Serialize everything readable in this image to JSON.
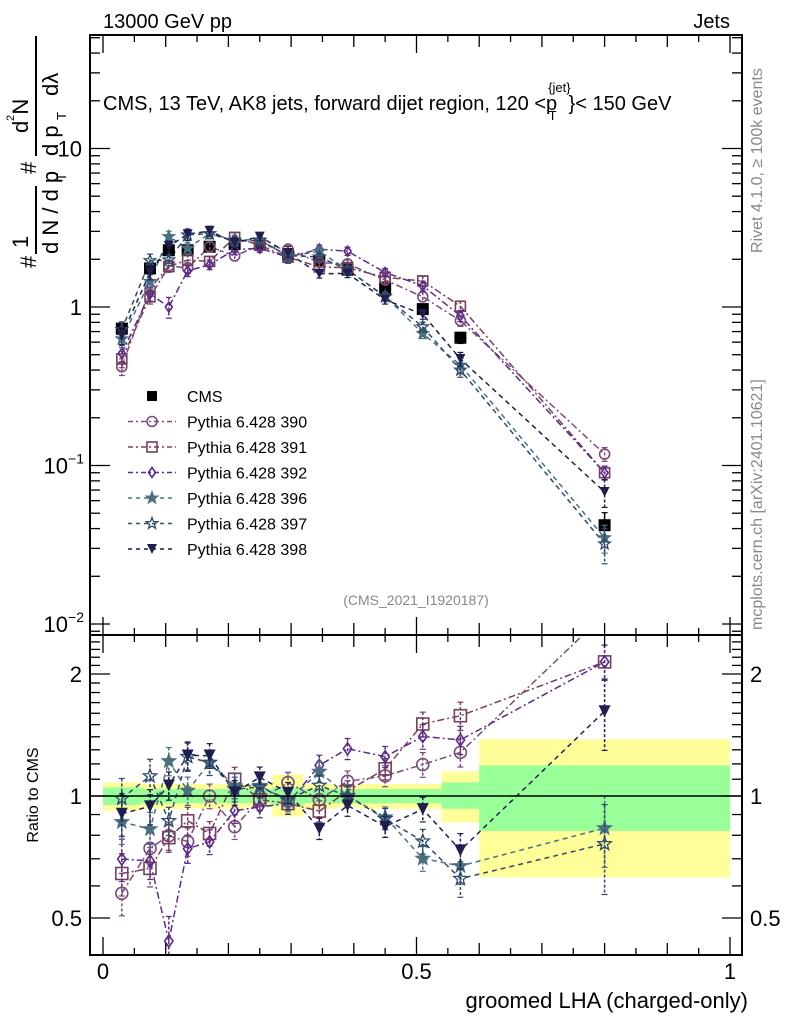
{
  "header": {
    "left": "13000 GeV pp",
    "right": "Jets"
  },
  "side_labels": {
    "rivet": "Rivet 4.1.0, ≥ 100k events",
    "mcplots": "mcplots.cern.ch [arXiv:2401.10621]"
  },
  "chart_data": [
    {
      "type": "scatter",
      "panel": "main",
      "title": "CMS, 13 TeV, AK8 jets, forward dijet region, 120 <p_T^{jet}< 150 GeV",
      "title_parts": {
        "pre": "CMS, 13 TeV, AK8 jets, forward dijet region, 120 <p",
        "sup": "{jet}",
        "sub": "T",
        "post": "}< 150 GeV"
      },
      "ylabel": "1/N dN/dp_T d²N/dp_T dλ",
      "yscale": "log",
      "ylim": [
        0.008,
        60
      ],
      "xlim": [
        -0.02,
        1.02
      ],
      "ytick_labels": [
        {
          "value": 10,
          "text": "10"
        },
        {
          "value": 1,
          "text": "1"
        },
        {
          "value": 0.1,
          "text": "10",
          "exp": "−1"
        },
        {
          "value": 0.01,
          "text": "10",
          "exp": "−2"
        }
      ],
      "watermark": "(CMS_2021_I1920187)",
      "legend_position": "lower-left",
      "x": [
        0.03,
        0.075,
        0.105,
        0.135,
        0.17,
        0.21,
        0.25,
        0.295,
        0.345,
        0.39,
        0.45,
        0.51,
        0.57,
        0.8
      ],
      "bin_edges": [
        0,
        0.06,
        0.09,
        0.12,
        0.15,
        0.19,
        0.23,
        0.27,
        0.32,
        0.37,
        0.41,
        0.48,
        0.54,
        0.6,
        1.0
      ],
      "series": [
        {
          "name": "CMS",
          "marker": "square-filled",
          "color": "#000000",
          "line": "none",
          "values": [
            0.73,
            1.75,
            2.28,
            2.28,
            2.4,
            2.5,
            2.5,
            2.15,
            1.95,
            1.72,
            1.32,
            0.97,
            0.64,
            0.042
          ],
          "rel_err": [
            0.05,
            0.05,
            0.06,
            0.05,
            0.05,
            0.04,
            0.04,
            0.12,
            0.04,
            0.05,
            0.05,
            0.05,
            0.08,
            0.2
          ]
        },
        {
          "name": "Pythia 6.428 390",
          "marker": "circle-open",
          "color": "#7b4b7b",
          "line": "dashdot",
          "values": [
            0.42,
            1.3,
            1.82,
            1.76,
            2.4,
            2.1,
            2.45,
            2.32,
            1.91,
            1.87,
            1.48,
            1.16,
            0.82,
            0.118
          ],
          "rel_err": [
            0.12,
            0.1,
            0.08,
            0.08,
            0.07,
            0.07,
            0.06,
            0.06,
            0.06,
            0.06,
            0.06,
            0.07,
            0.08,
            0.1
          ]
        },
        {
          "name": "Pythia 6.428 391",
          "marker": "square-open",
          "color": "#74405a",
          "line": "dashdot",
          "values": [
            0.47,
            1.16,
            1.8,
            1.98,
            1.94,
            2.75,
            2.45,
            2.06,
            1.79,
            1.77,
            1.54,
            1.46,
            1.01,
            0.09
          ],
          "rel_err": [
            0.12,
            0.1,
            0.08,
            0.08,
            0.07,
            0.07,
            0.06,
            0.06,
            0.06,
            0.06,
            0.06,
            0.07,
            0.08,
            0.1
          ]
        },
        {
          "name": "Pythia 6.428 392",
          "marker": "diamond-open",
          "color": "#5a2a8a",
          "line": "dashdot",
          "values": [
            0.51,
            1.21,
            1.0,
            1.69,
            1.85,
            2.3,
            2.35,
            2.06,
            2.32,
            2.25,
            1.65,
            1.36,
            0.88,
            0.09
          ],
          "rel_err": [
            0.12,
            0.1,
            0.15,
            0.08,
            0.07,
            0.07,
            0.06,
            0.06,
            0.06,
            0.06,
            0.06,
            0.07,
            0.08,
            0.1
          ]
        },
        {
          "name": "Pythia 6.428 396",
          "marker": "star-filled",
          "color": "#4a7080",
          "line": "dashed",
          "values": [
            0.63,
            1.45,
            2.78,
            2.35,
            2.9,
            2.65,
            2.65,
            2.09,
            2.24,
            1.72,
            1.17,
            0.68,
            0.43,
            0.035
          ],
          "rel_err": [
            0.12,
            0.1,
            0.08,
            0.08,
            0.07,
            0.07,
            0.06,
            0.06,
            0.06,
            0.06,
            0.06,
            0.07,
            0.1,
            0.2
          ]
        },
        {
          "name": "Pythia 6.428 397",
          "marker": "star-open",
          "color": "#2e4a6a",
          "line": "dashed",
          "values": [
            0.72,
            1.96,
            1.98,
            2.85,
            2.9,
            2.6,
            2.63,
            2.11,
            2.07,
            1.72,
            1.16,
            0.75,
            0.4,
            0.032
          ],
          "rel_err": [
            0.12,
            0.1,
            0.08,
            0.08,
            0.07,
            0.07,
            0.06,
            0.06,
            0.06,
            0.06,
            0.06,
            0.07,
            0.1,
            0.25
          ]
        },
        {
          "name": "Pythia 6.428 398",
          "marker": "triangle-down-filled",
          "color": "#1e1e50",
          "line": "dashed",
          "values": [
            0.66,
            1.65,
            2.42,
            2.87,
            3.02,
            2.55,
            2.78,
            2.19,
            1.62,
            1.63,
            1.11,
            0.9,
            0.47,
            0.068
          ],
          "rel_err": [
            0.12,
            0.1,
            0.08,
            0.08,
            0.07,
            0.07,
            0.06,
            0.06,
            0.06,
            0.06,
            0.06,
            0.07,
            0.1,
            0.2
          ]
        }
      ]
    },
    {
      "type": "scatter",
      "panel": "ratio",
      "ylabel": "Ratio to CMS",
      "xlabel": "groomed LHA (charged-only)",
      "yscale": "log",
      "ylim": [
        0.42,
        2.45
      ],
      "ytick_labels": [
        {
          "value": 2,
          "text": "2"
        },
        {
          "value": 1,
          "text": "1"
        },
        {
          "value": 0.5,
          "text": "0.5"
        }
      ],
      "xtick_labels": [
        {
          "value": 0,
          "text": "0"
        },
        {
          "value": 0.5,
          "text": "0.5"
        },
        {
          "value": 1,
          "text": "1"
        }
      ],
      "bands": {
        "yellow_color": "#ffff99",
        "green_color": "#99ff99",
        "yellow": [
          [
            0.92,
            1.08
          ],
          [
            0.93,
            1.07
          ],
          [
            0.93,
            1.07
          ],
          [
            0.93,
            1.07
          ],
          [
            0.93,
            1.07
          ],
          [
            0.93,
            1.07
          ],
          [
            0.94,
            1.07
          ],
          [
            0.89,
            1.13
          ],
          [
            0.93,
            1.07
          ],
          [
            0.94,
            1.06
          ],
          [
            0.93,
            1.07
          ],
          [
            0.93,
            1.07
          ],
          [
            0.86,
            1.15
          ],
          [
            0.63,
            1.38
          ]
        ],
        "green": [
          [
            0.95,
            1.05
          ],
          [
            0.96,
            1.04
          ],
          [
            0.96,
            1.04
          ],
          [
            0.96,
            1.04
          ],
          [
            0.96,
            1.04
          ],
          [
            0.96,
            1.04
          ],
          [
            0.96,
            1.04
          ],
          [
            0.95,
            1.05
          ],
          [
            0.96,
            1.04
          ],
          [
            0.96,
            1.04
          ],
          [
            0.96,
            1.04
          ],
          [
            0.96,
            1.04
          ],
          [
            0.93,
            1.08
          ],
          [
            0.82,
            1.19
          ]
        ]
      }
    }
  ]
}
